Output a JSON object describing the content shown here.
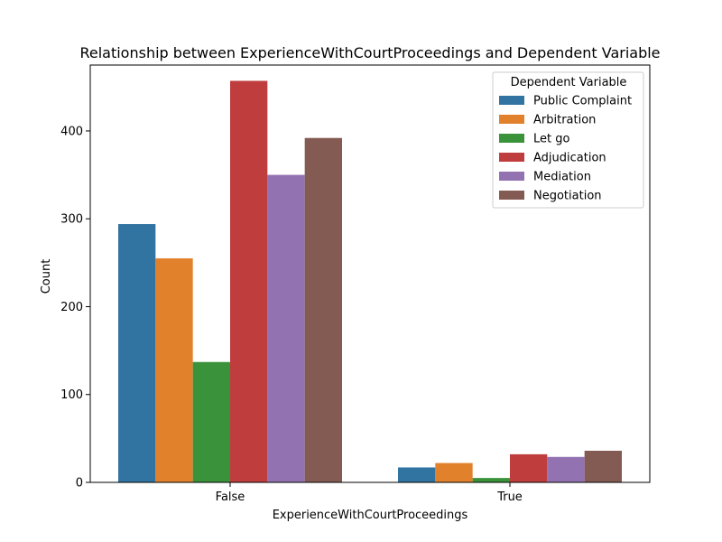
{
  "chart_data": {
    "type": "bar",
    "title": "Relationship between ExperienceWithCourtProceedings and Dependent Variable",
    "xlabel": "ExperienceWithCourtProceedings",
    "ylabel": "Count",
    "categories": [
      "False",
      "True"
    ],
    "ylim": [
      0,
      475
    ],
    "yticks": [
      0,
      100,
      200,
      300,
      400
    ],
    "grid": false,
    "legend": {
      "title": "Dependent Variable",
      "placement": "top-right"
    },
    "series": [
      {
        "name": "Public Complaint",
        "color": "#3274a1",
        "values": [
          294,
          17
        ]
      },
      {
        "name": "Arbitration",
        "color": "#e1812c",
        "values": [
          255,
          22
        ]
      },
      {
        "name": "Let go",
        "color": "#3a923a",
        "values": [
          137,
          5
        ]
      },
      {
        "name": "Adjudication",
        "color": "#c03d3e",
        "values": [
          457,
          32
        ]
      },
      {
        "name": "Mediation",
        "color": "#9372b2",
        "values": [
          350,
          29
        ]
      },
      {
        "name": "Negotiation",
        "color": "#845b53",
        "values": [
          392,
          36
        ]
      }
    ]
  }
}
